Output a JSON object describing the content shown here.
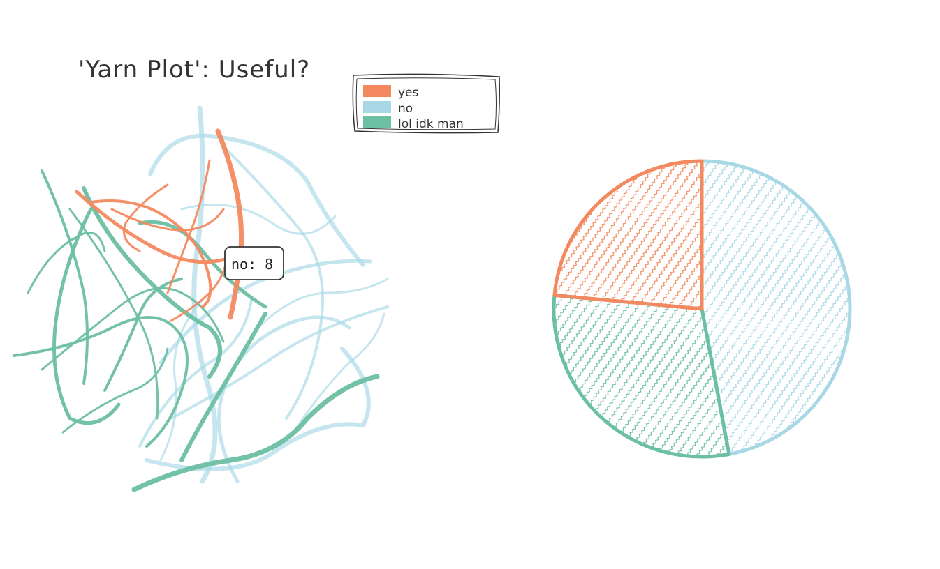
{
  "chart_data": {
    "type": "pie",
    "title": "'Yarn Plot': Useful?",
    "legend_position": "top",
    "series": [
      {
        "name": "yes",
        "value": 4,
        "color": "#f4895f"
      },
      {
        "name": "no",
        "value": 8,
        "color": "#a8d8e6"
      },
      {
        "name": "lol idk man",
        "value": 5,
        "color": "#6bbfa3"
      }
    ],
    "tooltip": {
      "label": "no: 8"
    }
  }
}
